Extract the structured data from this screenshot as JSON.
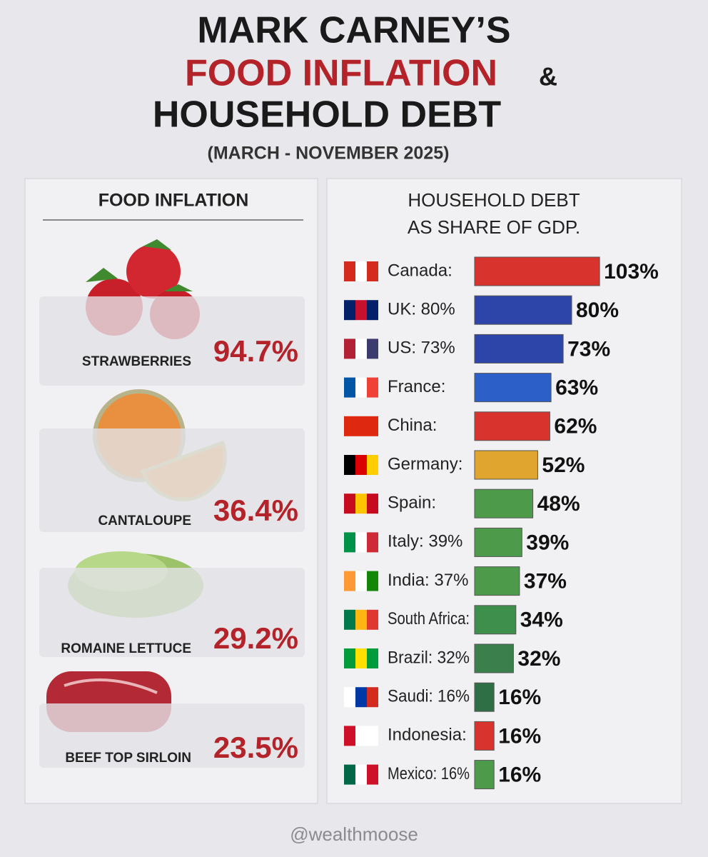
{
  "header": {
    "title_line1": "MARK CARNEY’S",
    "title_line2": "FOOD INFLATION",
    "title_amp": "&",
    "title_line3": "HOUSEHOLD DEBT",
    "subtitle": "(MARCH - NOVEMBER 2025)"
  },
  "food_inflation": {
    "title": "FOOD INFLATION",
    "items": [
      {
        "label": "STRAWBERRIES",
        "value": "94.7%"
      },
      {
        "label": "CANTALOUPE",
        "value": "36.4%"
      },
      {
        "label": "ROMAINE LETTUCE",
        "value": "29.2%"
      },
      {
        "label": "BEEF TOP SIRLOIN",
        "value": "23.5%"
      }
    ]
  },
  "chart_data": {
    "type": "hbar",
    "title_line1": "HOUSEHOLD DEBT",
    "title_line2": "AS SHARE OF GDP.",
    "categories": [
      "Canada:",
      "UK: 80%",
      "US: 73%",
      "France:",
      "China:",
      "Germany:",
      "Spain:",
      "Italy: 39%",
      "India: 37%",
      "South Africa:",
      "Brazil: 32%",
      "Saudi: 16%",
      "Indonesia:",
      "Mexico: 16%"
    ],
    "values": [
      103,
      80,
      73,
      63,
      62,
      52,
      48,
      39,
      37,
      34,
      32,
      16,
      16,
      16
    ],
    "value_labels": [
      "103%",
      "80%",
      "73%",
      "63%",
      "62%",
      "52%",
      "48%",
      "39%",
      "37%",
      "34%",
      "32%",
      "16%",
      "16%",
      "16%"
    ],
    "colors": [
      "#d9332e",
      "#2d45a8",
      "#2d45a8",
      "#2d5fc8",
      "#d9332e",
      "#e0a52e",
      "#4c9a4a",
      "#4c9a4a",
      "#4c9a4a",
      "#3f8f4c",
      "#3a7f4c",
      "#2f6f45",
      "#d9332e",
      "#4c9a4a"
    ]
  },
  "footer": {
    "handle": "@wealthmoose"
  }
}
